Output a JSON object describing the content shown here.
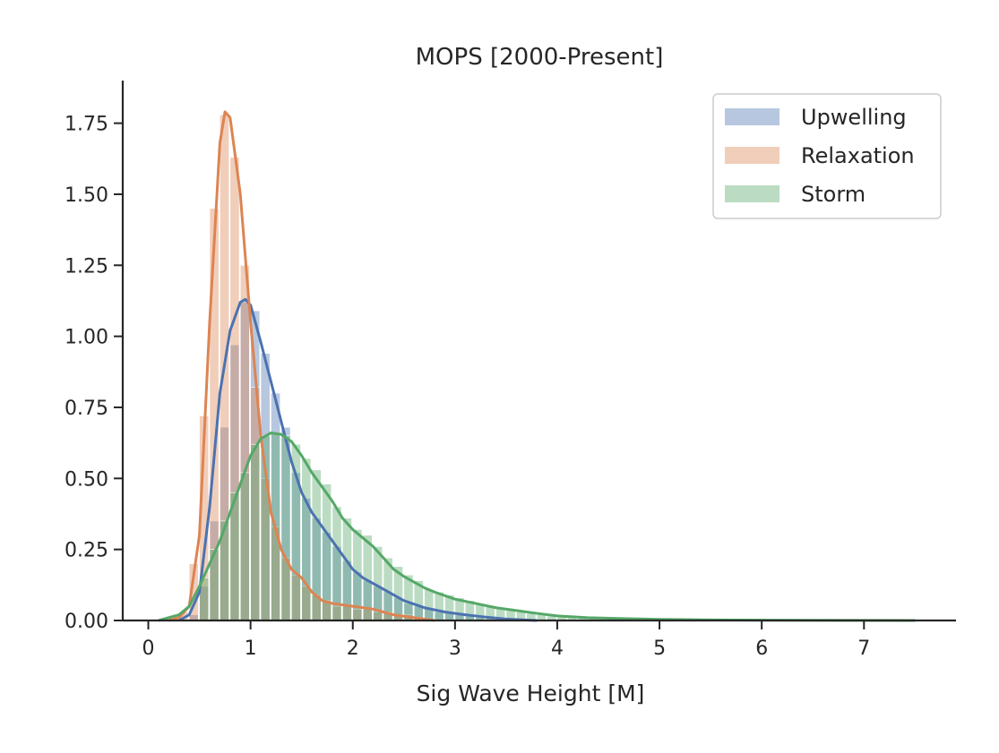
{
  "chart_data": {
    "type": "histogram",
    "title": "MOPS  [2000-Present]",
    "xlabel": "Sig Wave Height [M]",
    "ylabel": "",
    "xlim": [
      -0.25,
      7.9
    ],
    "ylim": [
      0,
      1.9
    ],
    "xticks": [
      0,
      1,
      2,
      3,
      4,
      5,
      6,
      7
    ],
    "yticks": [
      0.0,
      0.25,
      0.5,
      0.75,
      1.0,
      1.25,
      1.5,
      1.75
    ],
    "xtick_labels": [
      "0",
      "1",
      "2",
      "3",
      "4",
      "5",
      "6",
      "7"
    ],
    "ytick_labels": [
      "0.00",
      "0.25",
      "0.50",
      "0.75",
      "1.00",
      "1.25",
      "1.50",
      "1.75"
    ],
    "grid": false,
    "legend_position": "top-right",
    "legend_entries": [
      "Upwelling",
      "Relaxation",
      "Storm"
    ],
    "series": [
      {
        "name": "Upwelling",
        "color": "#4c72b0",
        "bins": [
          [
            0.45,
            0.02
          ],
          [
            0.55,
            0.12
          ],
          [
            0.65,
            0.35
          ],
          [
            0.75,
            0.68
          ],
          [
            0.85,
            0.97
          ],
          [
            0.95,
            1.12
          ],
          [
            1.05,
            1.09
          ],
          [
            1.15,
            0.94
          ],
          [
            1.25,
            0.8
          ],
          [
            1.35,
            0.68
          ],
          [
            1.45,
            0.52
          ],
          [
            1.55,
            0.43
          ],
          [
            1.65,
            0.36
          ],
          [
            1.75,
            0.31
          ],
          [
            1.85,
            0.26
          ],
          [
            1.95,
            0.21
          ],
          [
            2.05,
            0.17
          ],
          [
            2.15,
            0.14
          ],
          [
            2.25,
            0.12
          ],
          [
            2.35,
            0.1
          ],
          [
            2.45,
            0.08
          ],
          [
            2.55,
            0.06
          ],
          [
            2.65,
            0.05
          ],
          [
            2.75,
            0.04
          ],
          [
            2.85,
            0.03
          ],
          [
            2.95,
            0.03
          ],
          [
            3.05,
            0.02
          ],
          [
            3.15,
            0.02
          ],
          [
            3.25,
            0.01
          ],
          [
            3.35,
            0.01
          ]
        ],
        "kde": [
          [
            0.3,
            0.0
          ],
          [
            0.4,
            0.02
          ],
          [
            0.5,
            0.1
          ],
          [
            0.6,
            0.4
          ],
          [
            0.7,
            0.8
          ],
          [
            0.8,
            1.02
          ],
          [
            0.9,
            1.12
          ],
          [
            0.95,
            1.13
          ],
          [
            1.0,
            1.11
          ],
          [
            1.1,
            0.98
          ],
          [
            1.2,
            0.84
          ],
          [
            1.3,
            0.7
          ],
          [
            1.4,
            0.56
          ],
          [
            1.5,
            0.45
          ],
          [
            1.6,
            0.38
          ],
          [
            1.7,
            0.33
          ],
          [
            1.8,
            0.28
          ],
          [
            1.9,
            0.23
          ],
          [
            2.0,
            0.18
          ],
          [
            2.1,
            0.15
          ],
          [
            2.2,
            0.13
          ],
          [
            2.3,
            0.11
          ],
          [
            2.5,
            0.07
          ],
          [
            2.7,
            0.045
          ],
          [
            2.9,
            0.03
          ],
          [
            3.1,
            0.02
          ],
          [
            3.3,
            0.012
          ],
          [
            3.5,
            0.005
          ],
          [
            3.8,
            0.0
          ]
        ]
      },
      {
        "name": "Relaxation",
        "color": "#dd8452",
        "bins": [
          [
            0.35,
            0.03
          ],
          [
            0.45,
            0.2
          ],
          [
            0.55,
            0.72
          ],
          [
            0.65,
            1.45
          ],
          [
            0.75,
            1.78
          ],
          [
            0.85,
            1.63
          ],
          [
            0.95,
            1.25
          ],
          [
            1.05,
            0.82
          ],
          [
            1.15,
            0.5
          ],
          [
            1.25,
            0.33
          ],
          [
            1.35,
            0.22
          ],
          [
            1.45,
            0.16
          ],
          [
            1.55,
            0.12
          ],
          [
            1.65,
            0.09
          ],
          [
            1.75,
            0.07
          ],
          [
            1.85,
            0.05
          ],
          [
            1.95,
            0.05
          ],
          [
            2.05,
            0.04
          ],
          [
            2.15,
            0.04
          ],
          [
            2.25,
            0.03
          ],
          [
            2.35,
            0.03
          ],
          [
            2.45,
            0.02
          ],
          [
            2.55,
            0.02
          ],
          [
            2.65,
            0.01
          ]
        ],
        "kde": [
          [
            0.2,
            0.0
          ],
          [
            0.3,
            0.01
          ],
          [
            0.4,
            0.05
          ],
          [
            0.5,
            0.3
          ],
          [
            0.6,
            1.05
          ],
          [
            0.7,
            1.68
          ],
          [
            0.75,
            1.79
          ],
          [
            0.8,
            1.77
          ],
          [
            0.9,
            1.5
          ],
          [
            1.0,
            1.05
          ],
          [
            1.1,
            0.65
          ],
          [
            1.2,
            0.38
          ],
          [
            1.3,
            0.25
          ],
          [
            1.4,
            0.18
          ],
          [
            1.5,
            0.15
          ],
          [
            1.6,
            0.1
          ],
          [
            1.7,
            0.07
          ],
          [
            1.8,
            0.06
          ],
          [
            2.0,
            0.05
          ],
          [
            2.2,
            0.04
          ],
          [
            2.4,
            0.02
          ],
          [
            2.6,
            0.01
          ],
          [
            2.8,
            0.0
          ]
        ]
      },
      {
        "name": "Storm",
        "color": "#55a868",
        "bins": [
          [
            0.55,
            0.15
          ],
          [
            0.65,
            0.25
          ],
          [
            0.75,
            0.35
          ],
          [
            0.85,
            0.45
          ],
          [
            0.95,
            0.52
          ],
          [
            1.05,
            0.62
          ],
          [
            1.15,
            0.65
          ],
          [
            1.25,
            0.66
          ],
          [
            1.35,
            0.65
          ],
          [
            1.45,
            0.62
          ],
          [
            1.55,
            0.57
          ],
          [
            1.65,
            0.53
          ],
          [
            1.75,
            0.48
          ],
          [
            1.85,
            0.4
          ],
          [
            1.95,
            0.36
          ],
          [
            2.05,
            0.32
          ],
          [
            2.15,
            0.3
          ],
          [
            2.25,
            0.26
          ],
          [
            2.35,
            0.22
          ],
          [
            2.45,
            0.19
          ],
          [
            2.55,
            0.16
          ],
          [
            2.65,
            0.14
          ],
          [
            2.75,
            0.11
          ],
          [
            2.85,
            0.1
          ],
          [
            2.95,
            0.09
          ],
          [
            3.05,
            0.08
          ],
          [
            3.15,
            0.07
          ],
          [
            3.25,
            0.06
          ],
          [
            3.35,
            0.05
          ],
          [
            3.45,
            0.04
          ],
          [
            3.55,
            0.035
          ],
          [
            3.65,
            0.03
          ],
          [
            3.75,
            0.025
          ],
          [
            3.85,
            0.02
          ],
          [
            3.95,
            0.015
          ],
          [
            4.05,
            0.012
          ],
          [
            4.15,
            0.01
          ],
          [
            4.25,
            0.008
          ],
          [
            4.35,
            0.006
          ],
          [
            4.45,
            0.005
          ],
          [
            4.55,
            0.004
          ],
          [
            4.65,
            0.003
          ],
          [
            4.75,
            0.002
          ],
          [
            4.85,
            0.002
          ],
          [
            4.95,
            0.001
          ]
        ],
        "kde": [
          [
            0.1,
            0.0
          ],
          [
            0.3,
            0.02
          ],
          [
            0.4,
            0.05
          ],
          [
            0.5,
            0.12
          ],
          [
            0.6,
            0.2
          ],
          [
            0.7,
            0.28
          ],
          [
            0.8,
            0.38
          ],
          [
            0.9,
            0.48
          ],
          [
            1.0,
            0.58
          ],
          [
            1.1,
            0.64
          ],
          [
            1.2,
            0.66
          ],
          [
            1.3,
            0.655
          ],
          [
            1.4,
            0.63
          ],
          [
            1.5,
            0.58
          ],
          [
            1.6,
            0.52
          ],
          [
            1.7,
            0.47
          ],
          [
            1.8,
            0.42
          ],
          [
            1.9,
            0.36
          ],
          [
            2.0,
            0.32
          ],
          [
            2.1,
            0.29
          ],
          [
            2.2,
            0.26
          ],
          [
            2.3,
            0.22
          ],
          [
            2.4,
            0.18
          ],
          [
            2.5,
            0.155
          ],
          [
            2.6,
            0.135
          ],
          [
            2.7,
            0.115
          ],
          [
            2.8,
            0.1
          ],
          [
            3.0,
            0.075
          ],
          [
            3.2,
            0.06
          ],
          [
            3.4,
            0.045
          ],
          [
            3.6,
            0.035
          ],
          [
            3.8,
            0.025
          ],
          [
            4.0,
            0.016
          ],
          [
            4.3,
            0.01
          ],
          [
            4.6,
            0.007
          ],
          [
            5.0,
            0.004
          ],
          [
            5.5,
            0.002
          ],
          [
            6.0,
            0.001
          ],
          [
            7.5,
            0.0
          ]
        ]
      }
    ]
  }
}
